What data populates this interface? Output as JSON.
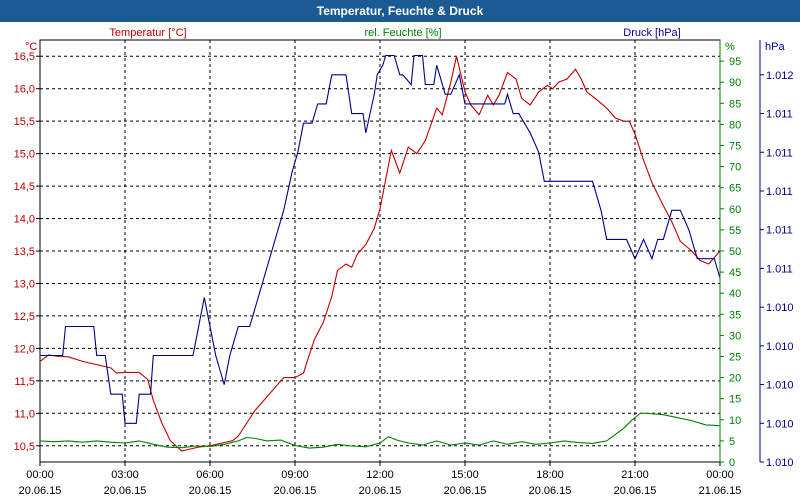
{
  "window": {
    "title": "Temperatur, Feuchte & Druck"
  },
  "colors": {
    "temperature": "#c00000",
    "humidity": "#008000",
    "pressure": "#00008b",
    "title_bar": "#1c5a94"
  },
  "chart_data": {
    "type": "line",
    "title": "Temperatur, Feuchte & Druck",
    "xlabel": "",
    "x_unit": "hours since 20.06.15 00:00",
    "xlim": [
      0,
      24
    ],
    "x_ticks": [
      {
        "time": "00:00",
        "date": "20.06.15"
      },
      {
        "time": "03:00",
        "date": "20.06.15"
      },
      {
        "time": "06:00",
        "date": "20.06.15"
      },
      {
        "time": "09:00",
        "date": "20.06.15"
      },
      {
        "time": "12:00",
        "date": "20.06.15"
      },
      {
        "time": "15:00",
        "date": "20.06.15"
      },
      {
        "time": "18:00",
        "date": "20.06.15"
      },
      {
        "time": "21:00",
        "date": "20.06.15"
      },
      {
        "time": "00:00",
        "date": "21.06.15"
      }
    ],
    "axes": {
      "temperature": {
        "label": "Temperatur [°C]",
        "unit": "°C",
        "ylim": [
          10.25,
          16.75
        ],
        "ticks": [
          10.5,
          11.0,
          11.5,
          12.0,
          12.5,
          13.0,
          13.5,
          14.0,
          14.5,
          15.0,
          15.5,
          16.0,
          16.5
        ],
        "tick_labels": [
          "10,5",
          "11,0",
          "11,5",
          "12,0",
          "12,5",
          "13,0",
          "13,5",
          "14,0",
          "14,5",
          "15,0",
          "15,5",
          "16,0",
          "16,5"
        ]
      },
      "humidity": {
        "label": "rel. Feuchte [%]",
        "unit": "%",
        "ylim": [
          0,
          100
        ],
        "ticks": [
          0,
          5,
          10,
          15,
          20,
          25,
          30,
          35,
          40,
          45,
          50,
          55,
          60,
          65,
          70,
          75,
          80,
          85,
          90,
          95
        ],
        "tick_labels": [
          "0",
          "5",
          "10",
          "15",
          "20",
          "25",
          "30",
          "35",
          "40",
          "45",
          "50",
          "55",
          "60",
          "65",
          "70",
          "75",
          "80",
          "85",
          "90",
          "95"
        ]
      },
      "pressure": {
        "label": "Druck [hPa]",
        "unit": "hPa",
        "ylim": [
          1010.0,
          1012.18
        ],
        "ticks": [
          1010.0,
          1010.2,
          1010.4,
          1010.6,
          1010.8,
          1011.0,
          1011.2,
          1011.4,
          1011.6,
          1011.8,
          1012.0
        ],
        "tick_labels": [
          "1.010",
          "1.010",
          "1.010",
          "1.010",
          "1.010",
          "1.011",
          "1.011",
          "1.011",
          "1.011",
          "1.011",
          "1.012"
        ]
      }
    },
    "series": [
      {
        "name": "Temperatur [°C]",
        "axis": "temperature",
        "color": "#c00000",
        "x": [
          0,
          0.3,
          0.6,
          1,
          1.5,
          2,
          2.5,
          2.7,
          3,
          3.5,
          3.8,
          4,
          4.3,
          4.6,
          5,
          5.3,
          5.6,
          6,
          6.5,
          6.8,
          7,
          7.3,
          7.6,
          8,
          8.3,
          8.6,
          9,
          9.3,
          9.5,
          9.7,
          10,
          10.3,
          10.5,
          10.8,
          11,
          11.2,
          11.5,
          11.8,
          12,
          12.2,
          12.4,
          12.7,
          13,
          13.3,
          13.6,
          13.8,
          14,
          14.2,
          14.5,
          14.7,
          15,
          15.2,
          15.5,
          15.8,
          16,
          16.2,
          16.5,
          16.8,
          17,
          17.3,
          17.6,
          17.9,
          18.1,
          18.3,
          18.6,
          18.9,
          19.1,
          19.3,
          19.6,
          20,
          20.3,
          20.6,
          20.8,
          21,
          21.3,
          21.6,
          22,
          22.3,
          22.6,
          23,
          23.3,
          23.6,
          24
        ],
        "y": [
          11.8,
          11.9,
          11.88,
          11.87,
          11.8,
          11.75,
          11.7,
          11.62,
          11.63,
          11.63,
          11.52,
          11.2,
          10.85,
          10.58,
          10.42,
          10.45,
          10.48,
          10.5,
          10.55,
          10.58,
          10.65,
          10.85,
          11.05,
          11.25,
          11.4,
          11.55,
          11.55,
          11.62,
          11.9,
          12.15,
          12.4,
          12.8,
          13.2,
          13.3,
          13.25,
          13.45,
          13.6,
          13.85,
          14.15,
          14.6,
          15.05,
          14.7,
          15.1,
          15.0,
          15.2,
          15.45,
          15.7,
          15.6,
          16.1,
          16.5,
          15.95,
          15.75,
          15.6,
          15.9,
          15.75,
          15.9,
          16.25,
          16.15,
          15.85,
          15.75,
          15.95,
          16.05,
          16.0,
          16.1,
          16.15,
          16.3,
          16.15,
          15.95,
          15.85,
          15.7,
          15.55,
          15.5,
          15.5,
          15.3,
          14.9,
          14.55,
          14.2,
          13.95,
          13.65,
          13.5,
          13.35,
          13.3,
          13.5
        ]
      },
      {
        "name": "rel. Feuchte [%]",
        "axis": "humidity",
        "color": "#008000",
        "x": [
          0,
          0.5,
          1,
          1.5,
          2,
          2.5,
          3,
          3.5,
          4,
          4.5,
          5,
          5.5,
          6,
          6.5,
          7,
          7.3,
          7.6,
          8,
          8.5,
          9,
          9.5,
          10,
          10.5,
          11,
          11.5,
          12,
          12.3,
          12.6,
          13,
          13.5,
          14,
          14.5,
          15,
          15.5,
          16,
          16.5,
          17,
          17.5,
          18,
          18.5,
          19,
          19.5,
          20,
          20.3,
          20.6,
          20.9,
          21.2,
          21.5,
          22,
          22.5,
          23,
          23.5,
          24
        ],
        "y": [
          5,
          4.8,
          5,
          4.7,
          5,
          4.7,
          4.5,
          5,
          4.2,
          3.5,
          3.4,
          3.8,
          3.7,
          4.2,
          5,
          5.8,
          5.6,
          5,
          5.2,
          3.9,
          3.3,
          3.5,
          4.2,
          3.8,
          3.6,
          4.5,
          6,
          5.2,
          4.5,
          4,
          5,
          4,
          4.5,
          4,
          5,
          4.2,
          4.8,
          4.2,
          4.5,
          5,
          4.6,
          4.4,
          5,
          6.5,
          8,
          10,
          11.6,
          11.5,
          11.2,
          10.5,
          9.8,
          8.8,
          8.6
        ]
      },
      {
        "name": "Druck [hPa]",
        "axis": "pressure",
        "color": "#00008b",
        "x": [
          0,
          0.8,
          0.9,
          1.9,
          2.0,
          2.3,
          2.5,
          2.9,
          3.0,
          3.4,
          3.5,
          3.9,
          4.0,
          5.4,
          5.8,
          6.2,
          6.5,
          6.7,
          7.0,
          7.4,
          7.7,
          8.0,
          8.3,
          8.6,
          8.9,
          9.1,
          9.3,
          9.6,
          9.8,
          10.1,
          10.3,
          10.5,
          10.8,
          11.0,
          11.4,
          11.5,
          11.8,
          11.9,
          12.1,
          12.2,
          12.5,
          12.7,
          12.8,
          13.1,
          13.2,
          13.5,
          13.6,
          13.9,
          14.0,
          14.3,
          14.5,
          14.8,
          15.0,
          15.5,
          15.8,
          16.4,
          16.5,
          16.7,
          16.9,
          17.3,
          17.6,
          17.8,
          18.0,
          18.5,
          18.7,
          19.5,
          19.8,
          20.0,
          20.5,
          20.7,
          21.0,
          21.3,
          21.6,
          21.8,
          22.0,
          22.3,
          22.6,
          22.9,
          23.2,
          23.5,
          23.8,
          24.0
        ],
        "y": [
          1010.55,
          1010.55,
          1010.7,
          1010.7,
          1010.55,
          1010.55,
          1010.35,
          1010.35,
          1010.2,
          1010.2,
          1010.35,
          1010.35,
          1010.55,
          1010.55,
          1010.85,
          1010.55,
          1010.4,
          1010.55,
          1010.7,
          1010.7,
          1010.85,
          1011.0,
          1011.15,
          1011.3,
          1011.5,
          1011.6,
          1011.75,
          1011.75,
          1011.85,
          1011.85,
          1012.0,
          1012.0,
          1012.0,
          1011.8,
          1011.8,
          1011.7,
          1011.9,
          1012.0,
          1012.05,
          1012.1,
          1012.1,
          1012.0,
          1012.0,
          1011.95,
          1012.1,
          1012.1,
          1011.95,
          1011.95,
          1012.05,
          1011.9,
          1011.9,
          1012.0,
          1011.85,
          1011.85,
          1011.85,
          1011.85,
          1011.9,
          1011.8,
          1011.8,
          1011.7,
          1011.6,
          1011.45,
          1011.45,
          1011.45,
          1011.45,
          1011.45,
          1011.3,
          1011.15,
          1011.15,
          1011.15,
          1011.05,
          1011.15,
          1011.05,
          1011.15,
          1011.15,
          1011.3,
          1011.3,
          1011.2,
          1011.05,
          1011.05,
          1011.05,
          1010.95
        ]
      }
    ]
  }
}
